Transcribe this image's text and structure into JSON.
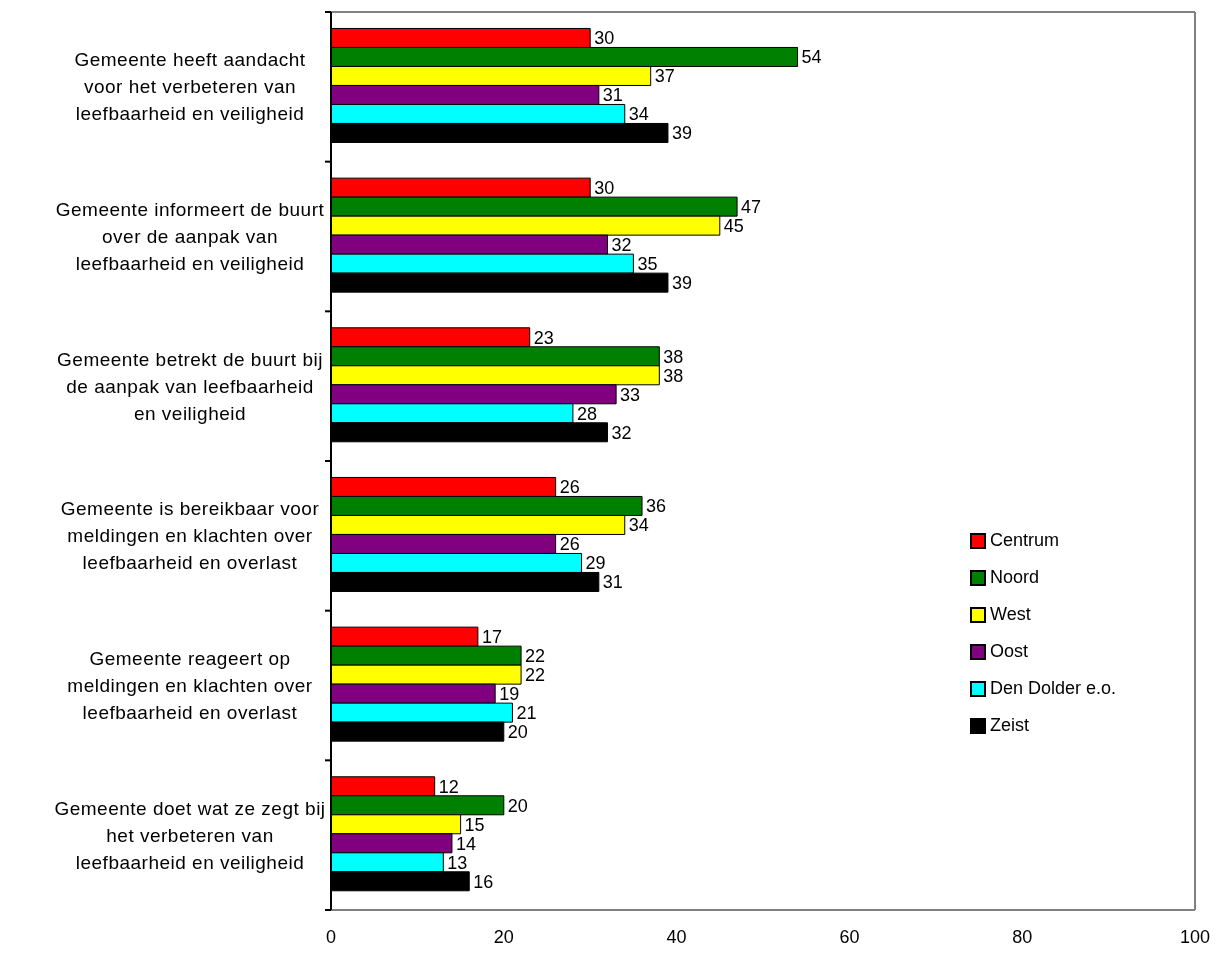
{
  "chart_data": {
    "type": "bar",
    "orientation": "horizontal",
    "categories": [
      "Gemeente heeft aandacht voor het verbeteren van leefbaarheid en veiligheid",
      "Gemeente informeert de buurt over de aanpak van leefbaarheid en veiligheid",
      "Gemeente betrekt de buurt bij de aanpak van leefbaarheid en veiligheid",
      "Gemeente is bereikbaar voor meldingen en klachten over leefbaarheid en overlast",
      "Gemeente reageert op meldingen en klachten over leefbaarheid en overlast",
      "Gemeente doet wat ze zegt bij het verbeteren van leefbaarheid en veiligheid"
    ],
    "series": [
      {
        "name": "Centrum",
        "color": "#ff0000",
        "values": [
          30,
          30,
          23,
          26,
          17,
          12
        ]
      },
      {
        "name": "Noord",
        "color": "#008000",
        "values": [
          54,
          47,
          38,
          36,
          22,
          20
        ]
      },
      {
        "name": "West",
        "color": "#ffff00",
        "values": [
          37,
          45,
          38,
          34,
          22,
          15
        ]
      },
      {
        "name": "Oost",
        "color": "#800080",
        "values": [
          31,
          32,
          33,
          26,
          19,
          14
        ]
      },
      {
        "name": "Den Dolder e.o.",
        "color": "#00ffff",
        "values": [
          34,
          35,
          28,
          29,
          21,
          13
        ]
      },
      {
        "name": "Zeist",
        "color": "#000000",
        "values": [
          39,
          39,
          32,
          31,
          20,
          16
        ]
      }
    ],
    "xlim": [
      0,
      100
    ],
    "xticks": [
      0,
      20,
      40,
      60,
      80,
      100
    ],
    "data_labels": true,
    "legend": "right"
  }
}
